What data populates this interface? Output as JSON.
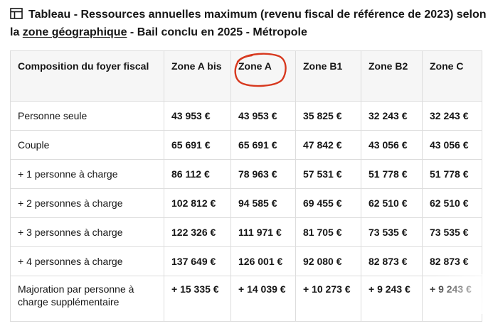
{
  "title": {
    "prefix": "Tableau - Ressources annuelles maximum (revenu fiscal de référence de 2023) selon la ",
    "link": "zone géographique",
    "suffix": " - Bail conclu en 2025 - Métropole"
  },
  "table": {
    "headers": [
      "Composition du foyer fiscal",
      "Zone A bis",
      "Zone A",
      "Zone B1",
      "Zone B2",
      "Zone C"
    ],
    "rows": [
      {
        "label": "Personne seule",
        "values": [
          "43 953 €",
          "43 953 €",
          "35 825 €",
          "32 243 €",
          "32 243 €"
        ]
      },
      {
        "label": "Couple",
        "values": [
          "65 691 €",
          "65 691 €",
          "47 842 €",
          "43 056 €",
          "43 056 €"
        ]
      },
      {
        "label": "+ 1 personne à charge",
        "values": [
          "86 112 €",
          "78 963 €",
          "57 531 €",
          "51 778 €",
          "51 778 €"
        ]
      },
      {
        "label": "+ 2 personnes à charge",
        "values": [
          "102 812 €",
          "94 585 €",
          "69 455 €",
          "62 510 €",
          "62 510 €"
        ]
      },
      {
        "label": "+ 3 personnes à charge",
        "values": [
          "122 326 €",
          "111 971 €",
          "81 705 €",
          "73 535 €",
          "73 535 €"
        ]
      },
      {
        "label": "+ 4 personnes à charge",
        "values": [
          "137 649 €",
          "126 001 €",
          "92 080 €",
          "82 873 €",
          "82 873 €"
        ]
      },
      {
        "label": "Majoration par personne à charge supplémentaire",
        "values": [
          "+ 15 335 €",
          "+ 14 039 €",
          "+ 10 273 €",
          "+ 9 243 €",
          "+ 9 243 €"
        ]
      }
    ]
  },
  "annotation": {
    "icon": "hand-drawn-circle",
    "color": "#d7381e",
    "highlights": "Zone A"
  },
  "icons": {
    "title_icon": "table-icon"
  }
}
